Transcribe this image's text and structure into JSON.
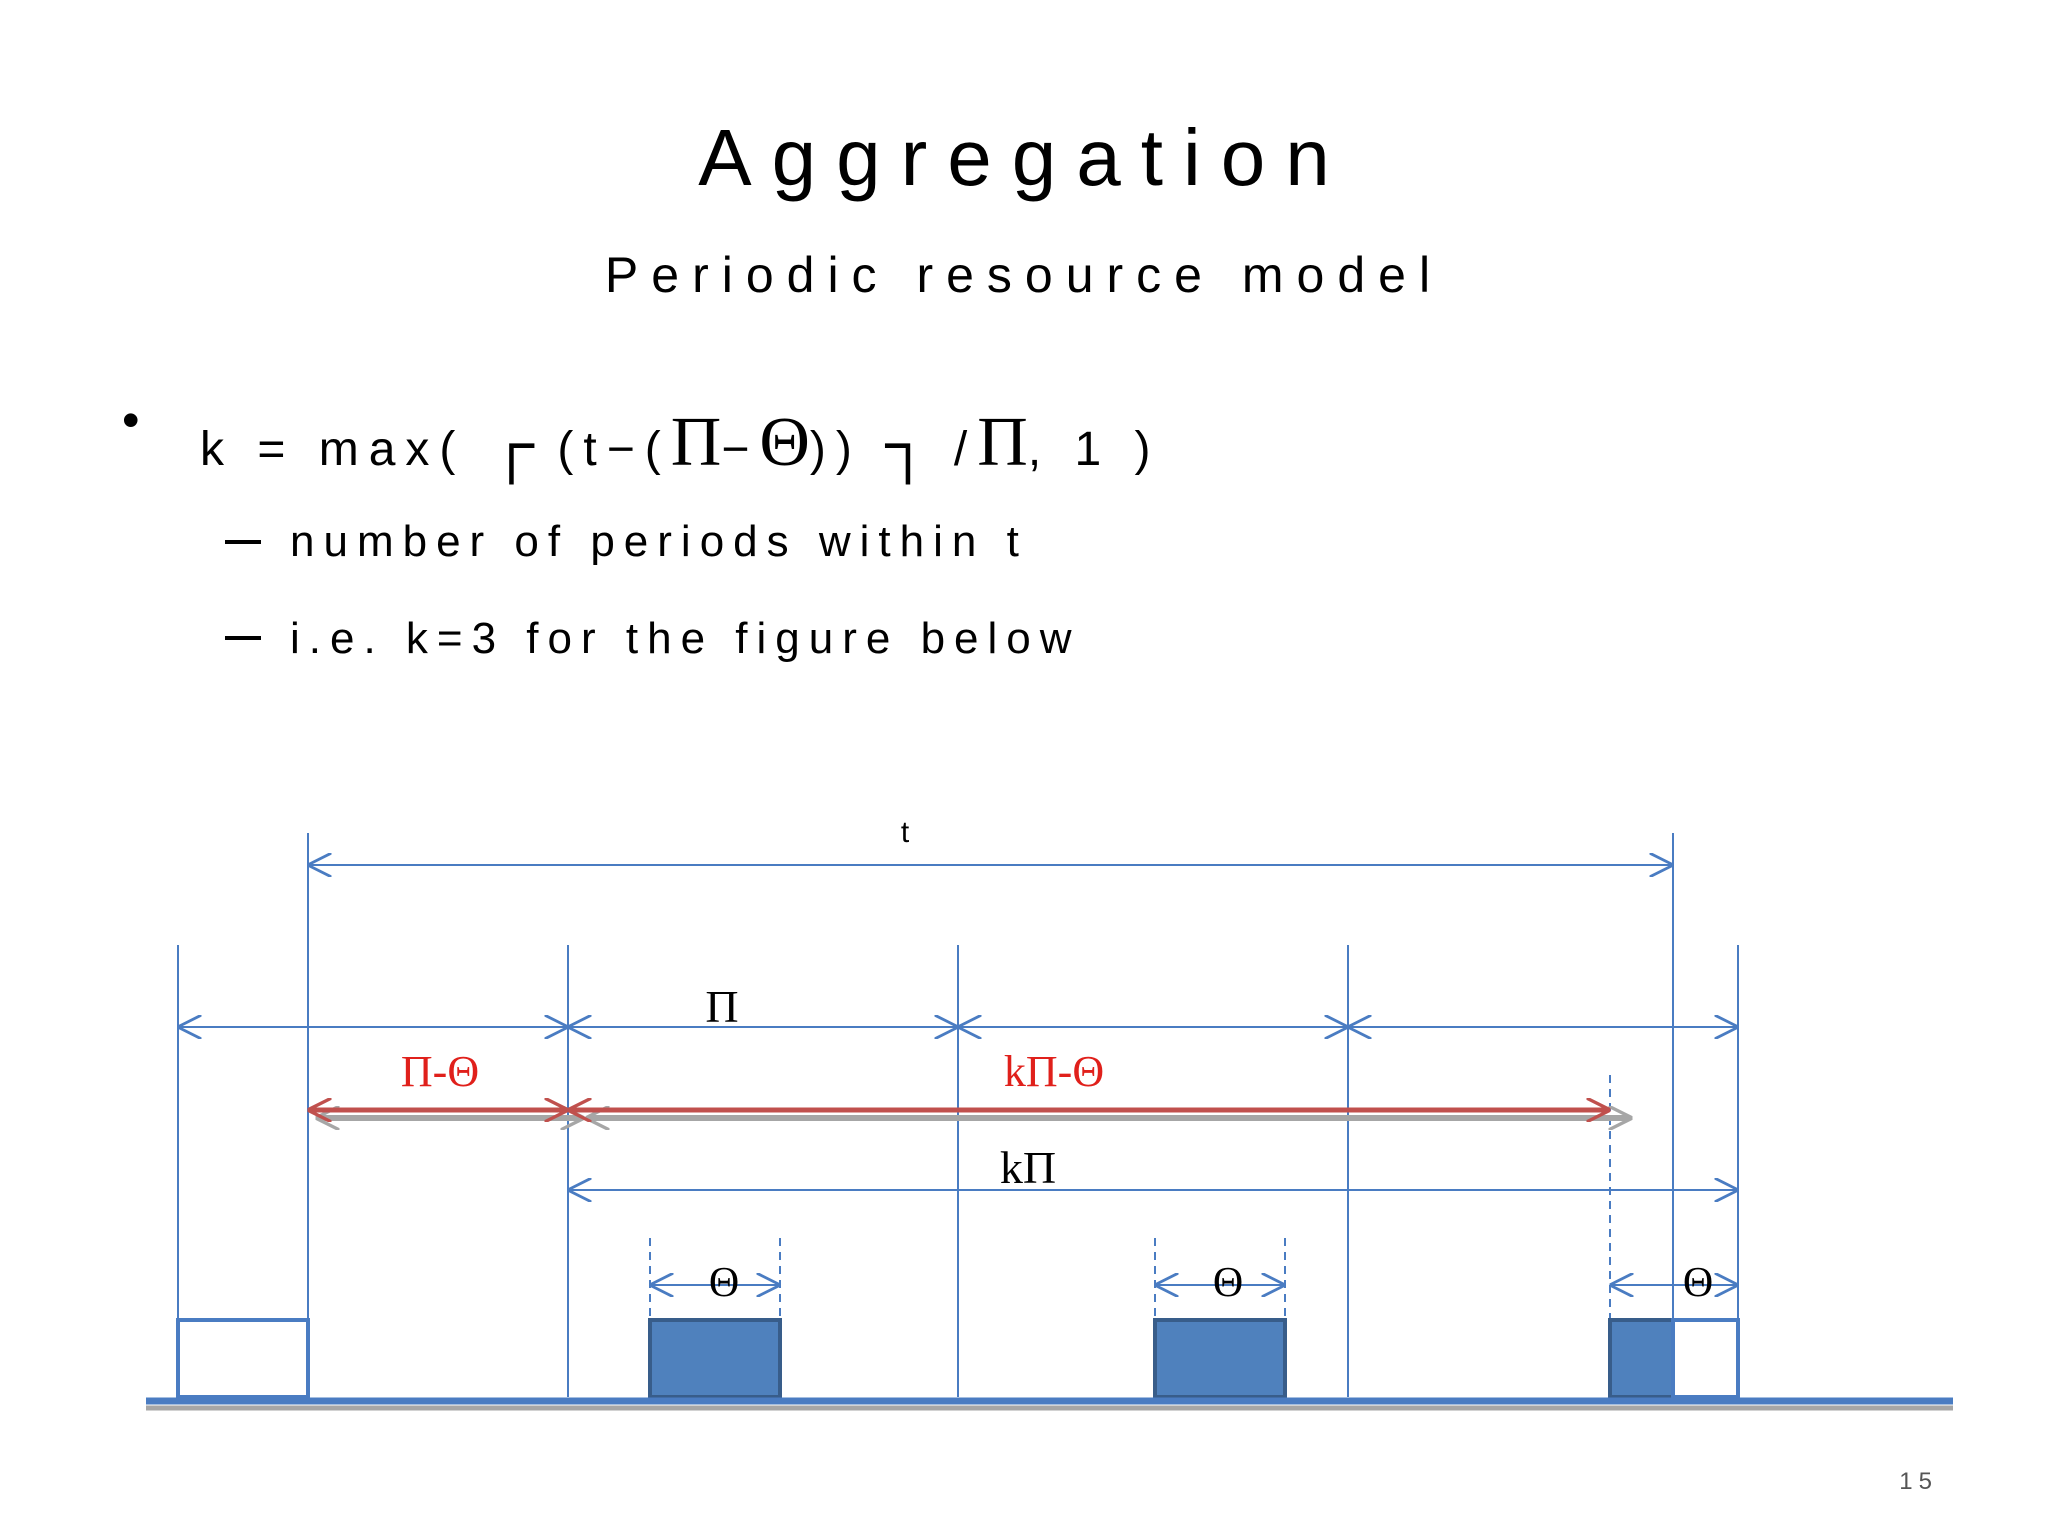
{
  "slide": {
    "title": "Aggregation",
    "subtitle": "Periodic resource model",
    "bullet_symbol": "•",
    "formula": {
      "prefix": "k = max(",
      "corner_left": "┌",
      "inner_a": "(t−(",
      "pi": "Π",
      "minus": "−",
      "theta": "Θ",
      "inner_b": "))",
      "corner_right": "┐",
      "divide": "/",
      "pi2": "Π",
      "suffix": ", 1 )"
    },
    "sub_bullets": [
      "number of periods within t",
      "i.e. k=3 for the figure below"
    ],
    "page_number": "15"
  },
  "diagram": {
    "labels": {
      "t": "t",
      "pi": "Π",
      "pi_minus_theta": "Π-Θ",
      "k_pi_minus_theta": "kΠ-Θ",
      "k_pi": "kΠ",
      "theta_1": "Θ",
      "theta_2": "Θ",
      "theta_3": "Θ"
    },
    "colors": {
      "blue_line": "#4a7cc2",
      "red_line": "#c0504d",
      "red_text": "#e0201b",
      "shadow": "#a6a6a6",
      "block_fill": "#4f81bd",
      "block_edge": "#385d8a",
      "baseline": "#4a7cc2"
    }
  }
}
